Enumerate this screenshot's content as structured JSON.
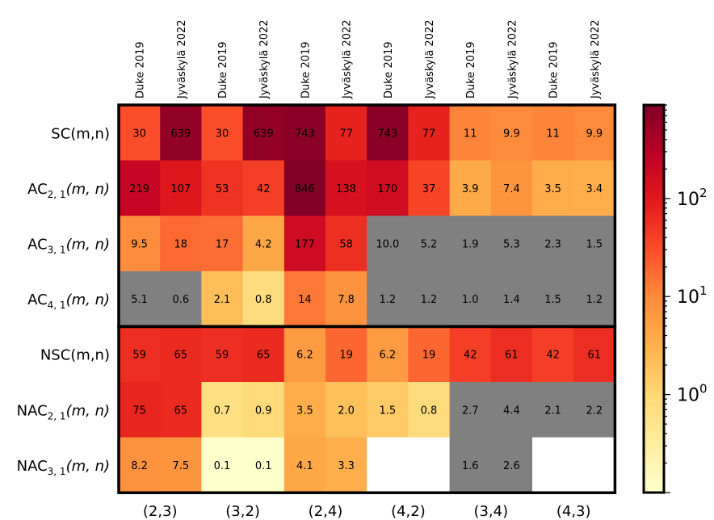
{
  "chart_data": {
    "type": "heatmap",
    "title": "",
    "xlabel": "",
    "ylabel": "",
    "columns": [
      "Duke 2019",
      "Jyväskylä 2022",
      "Duke 2019",
      "Jyväskylä 2022",
      "Duke 2019",
      "Jyväskylä 2022",
      "Duke 2019",
      "Jyväskylä 2022",
      "Duke 2019",
      "Jyväskylä 2022",
      "Duke 2019",
      "Jyväskylä 2022"
    ],
    "column_groups": [
      "(2,3)",
      "(3,2)",
      "(2,4)",
      "(4,2)",
      "(3,4)",
      "(4,3)"
    ],
    "rows": [
      {
        "base": "SC",
        "sub": "",
        "args": "(m,n)"
      },
      {
        "base": "AC",
        "sub": "2, 1",
        "args": "(m, n)"
      },
      {
        "base": "AC",
        "sub": "3, 1",
        "args": "(m, n)"
      },
      {
        "base": "AC",
        "sub": "4, 1",
        "args": "(m, n)"
      },
      {
        "base": "NSC",
        "sub": "",
        "args": "(m,n)"
      },
      {
        "base": "NAC",
        "sub": "2, 1",
        "args": "(m, n)"
      },
      {
        "base": "NAC",
        "sub": "3, 1",
        "args": "(m, n)"
      }
    ],
    "cells": [
      [
        {
          "v": 30,
          "t": "30"
        },
        {
          "v": 639,
          "t": "639"
        },
        {
          "v": 30,
          "t": "30"
        },
        {
          "v": 639,
          "t": "639"
        },
        {
          "v": 743,
          "t": "743"
        },
        {
          "v": 77,
          "t": "77"
        },
        {
          "v": 743,
          "t": "743"
        },
        {
          "v": 77,
          "t": "77"
        },
        {
          "v": 11,
          "t": "11"
        },
        {
          "v": 9.9,
          "t": "9.9"
        },
        {
          "v": 11,
          "t": "11"
        },
        {
          "v": 9.9,
          "t": "9.9"
        }
      ],
      [
        {
          "v": 219,
          "t": "219"
        },
        {
          "v": 107,
          "t": "107"
        },
        {
          "v": 53,
          "t": "53"
        },
        {
          "v": 42,
          "t": "42"
        },
        {
          "v": 846,
          "t": "846"
        },
        {
          "v": 138,
          "t": "138"
        },
        {
          "v": 170,
          "t": "170"
        },
        {
          "v": 37,
          "t": "37"
        },
        {
          "v": 3.9,
          "t": "3.9"
        },
        {
          "v": 7.4,
          "t": "7.4"
        },
        {
          "v": 3.5,
          "t": "3.5"
        },
        {
          "v": 3.4,
          "t": "3.4"
        }
      ],
      [
        {
          "v": 9.5,
          "t": "9.5"
        },
        {
          "v": 18,
          "t": "18"
        },
        {
          "v": 17,
          "t": "17"
        },
        {
          "v": 4.2,
          "t": "4.2"
        },
        {
          "v": 177,
          "t": "177"
        },
        {
          "v": 58,
          "t": "58"
        },
        {
          "v": 10.0,
          "t": "10.0",
          "gray": true
        },
        {
          "v": 5.2,
          "t": "5.2",
          "gray": true
        },
        {
          "v": 1.9,
          "t": "1.9",
          "gray": true
        },
        {
          "v": 5.3,
          "t": "5.3",
          "gray": true
        },
        {
          "v": 2.3,
          "t": "2.3",
          "gray": true
        },
        {
          "v": 1.5,
          "t": "1.5",
          "gray": true
        }
      ],
      [
        {
          "v": 5.1,
          "t": "5.1",
          "gray": true
        },
        {
          "v": 0.6,
          "t": "0.6",
          "gray": true
        },
        {
          "v": 2.1,
          "t": "2.1"
        },
        {
          "v": 0.8,
          "t": "0.8"
        },
        {
          "v": 14,
          "t": "14"
        },
        {
          "v": 7.8,
          "t": "7.8"
        },
        {
          "v": 1.2,
          "t": "1.2",
          "gray": true
        },
        {
          "v": 1.2,
          "t": "1.2",
          "gray": true
        },
        {
          "v": 1.0,
          "t": "1.0",
          "gray": true
        },
        {
          "v": 1.4,
          "t": "1.4",
          "gray": true
        },
        {
          "v": 1.5,
          "t": "1.5",
          "gray": true
        },
        {
          "v": 1.2,
          "t": "1.2",
          "gray": true
        }
      ],
      [
        {
          "v": 59,
          "t": "59"
        },
        {
          "v": 65,
          "t": "65"
        },
        {
          "v": 59,
          "t": "59"
        },
        {
          "v": 65,
          "t": "65"
        },
        {
          "v": 6.2,
          "t": "6.2"
        },
        {
          "v": 19,
          "t": "19"
        },
        {
          "v": 6.2,
          "t": "6.2"
        },
        {
          "v": 19,
          "t": "19"
        },
        {
          "v": 42,
          "t": "42"
        },
        {
          "v": 61,
          "t": "61"
        },
        {
          "v": 42,
          "t": "42"
        },
        {
          "v": 61,
          "t": "61"
        }
      ],
      [
        {
          "v": 75,
          "t": "75"
        },
        {
          "v": 65,
          "t": "65"
        },
        {
          "v": 0.7,
          "t": "0.7"
        },
        {
          "v": 0.9,
          "t": "0.9"
        },
        {
          "v": 3.5,
          "t": "3.5"
        },
        {
          "v": 2.0,
          "t": "2.0"
        },
        {
          "v": 1.5,
          "t": "1.5"
        },
        {
          "v": 0.8,
          "t": "0.8"
        },
        {
          "v": 2.7,
          "t": "2.7",
          "gray": true
        },
        {
          "v": 4.4,
          "t": "4.4",
          "gray": true
        },
        {
          "v": 2.1,
          "t": "2.1",
          "gray": true
        },
        {
          "v": 2.2,
          "t": "2.2",
          "gray": true
        }
      ],
      [
        {
          "v": 8.2,
          "t": "8.2"
        },
        {
          "v": 7.5,
          "t": "7.5"
        },
        {
          "v": 0.1,
          "t": "0.1"
        },
        {
          "v": 0.1,
          "t": "0.1"
        },
        {
          "v": 4.1,
          "t": "4.1"
        },
        {
          "v": 3.3,
          "t": "3.3"
        },
        null,
        null,
        {
          "v": 1.6,
          "t": "1.6",
          "gray": true
        },
        {
          "v": 2.6,
          "t": "2.6",
          "gray": true
        },
        null,
        null
      ]
    ],
    "separator_after_row": 3,
    "colorbar": {
      "scale": "log",
      "colormap": "YlOrRd",
      "range": [
        0.1,
        900
      ],
      "ticks": [
        {
          "value": 1,
          "label": "10^0"
        },
        {
          "value": 10,
          "label": "10^1"
        },
        {
          "value": 100,
          "label": "10^2"
        }
      ]
    },
    "masked_color": "#808080",
    "missing_color": "#ffffff"
  }
}
